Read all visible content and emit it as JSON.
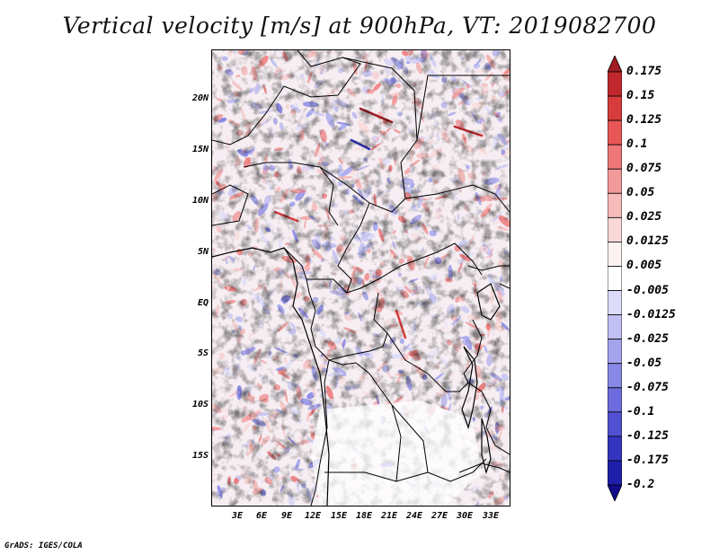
{
  "title": "Vertical velocity [m/s] at 900hPa, VT: 2019082700",
  "map": {
    "lat_labels": [
      "20N",
      "15N",
      "10N",
      "5N",
      "EQ",
      "5S",
      "10S",
      "15S"
    ],
    "lon_labels": [
      "3E",
      "6E",
      "9E",
      "12E",
      "15E",
      "18E",
      "21E",
      "24E",
      "27E",
      "30E",
      "33E"
    ]
  },
  "colorbar": {
    "levels": [
      "0.175",
      "0.15",
      "0.125",
      "0.1",
      "0.075",
      "0.05",
      "0.025",
      "0.0125",
      "0.005",
      "-0.005",
      "-0.0125",
      "-0.025",
      "-0.05",
      "-0.075",
      "-0.1",
      "-0.125",
      "-0.175",
      "-0.2"
    ],
    "colors": [
      "#a01c22",
      "#c0282d",
      "#d83c3c",
      "#e85656",
      "#ee7878",
      "#f29a9a",
      "#f6baba",
      "#fad8d8",
      "#fdf2f2",
      "#ffffff",
      "#dcdcfa",
      "#c0c0f4",
      "#a4a4ee",
      "#8888e6",
      "#6c6cdc",
      "#5050d0",
      "#3434c0",
      "#1e1eaa",
      "#100c8c"
    ]
  },
  "credit": "GrADS: IGES/COLA"
}
